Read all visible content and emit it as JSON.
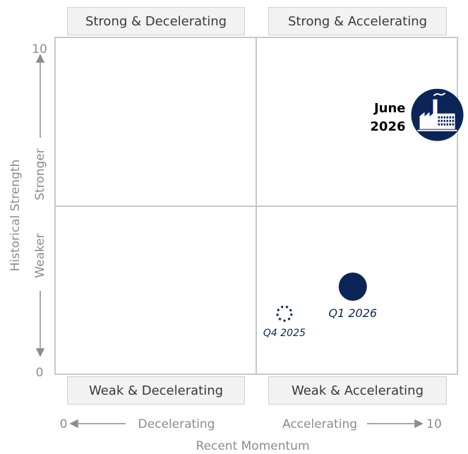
{
  "chart_data": {
    "type": "scatter",
    "quadrants": [
      "Strong & Decelerating",
      "Strong & Accelerating",
      "Weak & Decelerating",
      "Weak & Accelerating"
    ],
    "x_axis_label": "Recent Momentum",
    "y_axis_label": "Historical Strength",
    "x_low_label": "Decelerating",
    "x_high_label": "Accelerating",
    "y_low_label": "Weaker",
    "y_high_label": "Stronger",
    "xlim": [
      0,
      10
    ],
    "ylim": [
      0,
      10
    ],
    "xticks": [
      0,
      10
    ],
    "yticks": [
      0,
      10
    ],
    "color": "#0b2559",
    "points": [
      {
        "label": "June 2026",
        "x": 9.5,
        "y": 7.7,
        "marker": "icon"
      },
      {
        "label": "Q1 2026",
        "x": 7.4,
        "y": 2.6,
        "marker": "filled"
      },
      {
        "label": "Q4 2025",
        "x": 5.7,
        "y": 1.8,
        "marker": "dotted"
      }
    ]
  }
}
